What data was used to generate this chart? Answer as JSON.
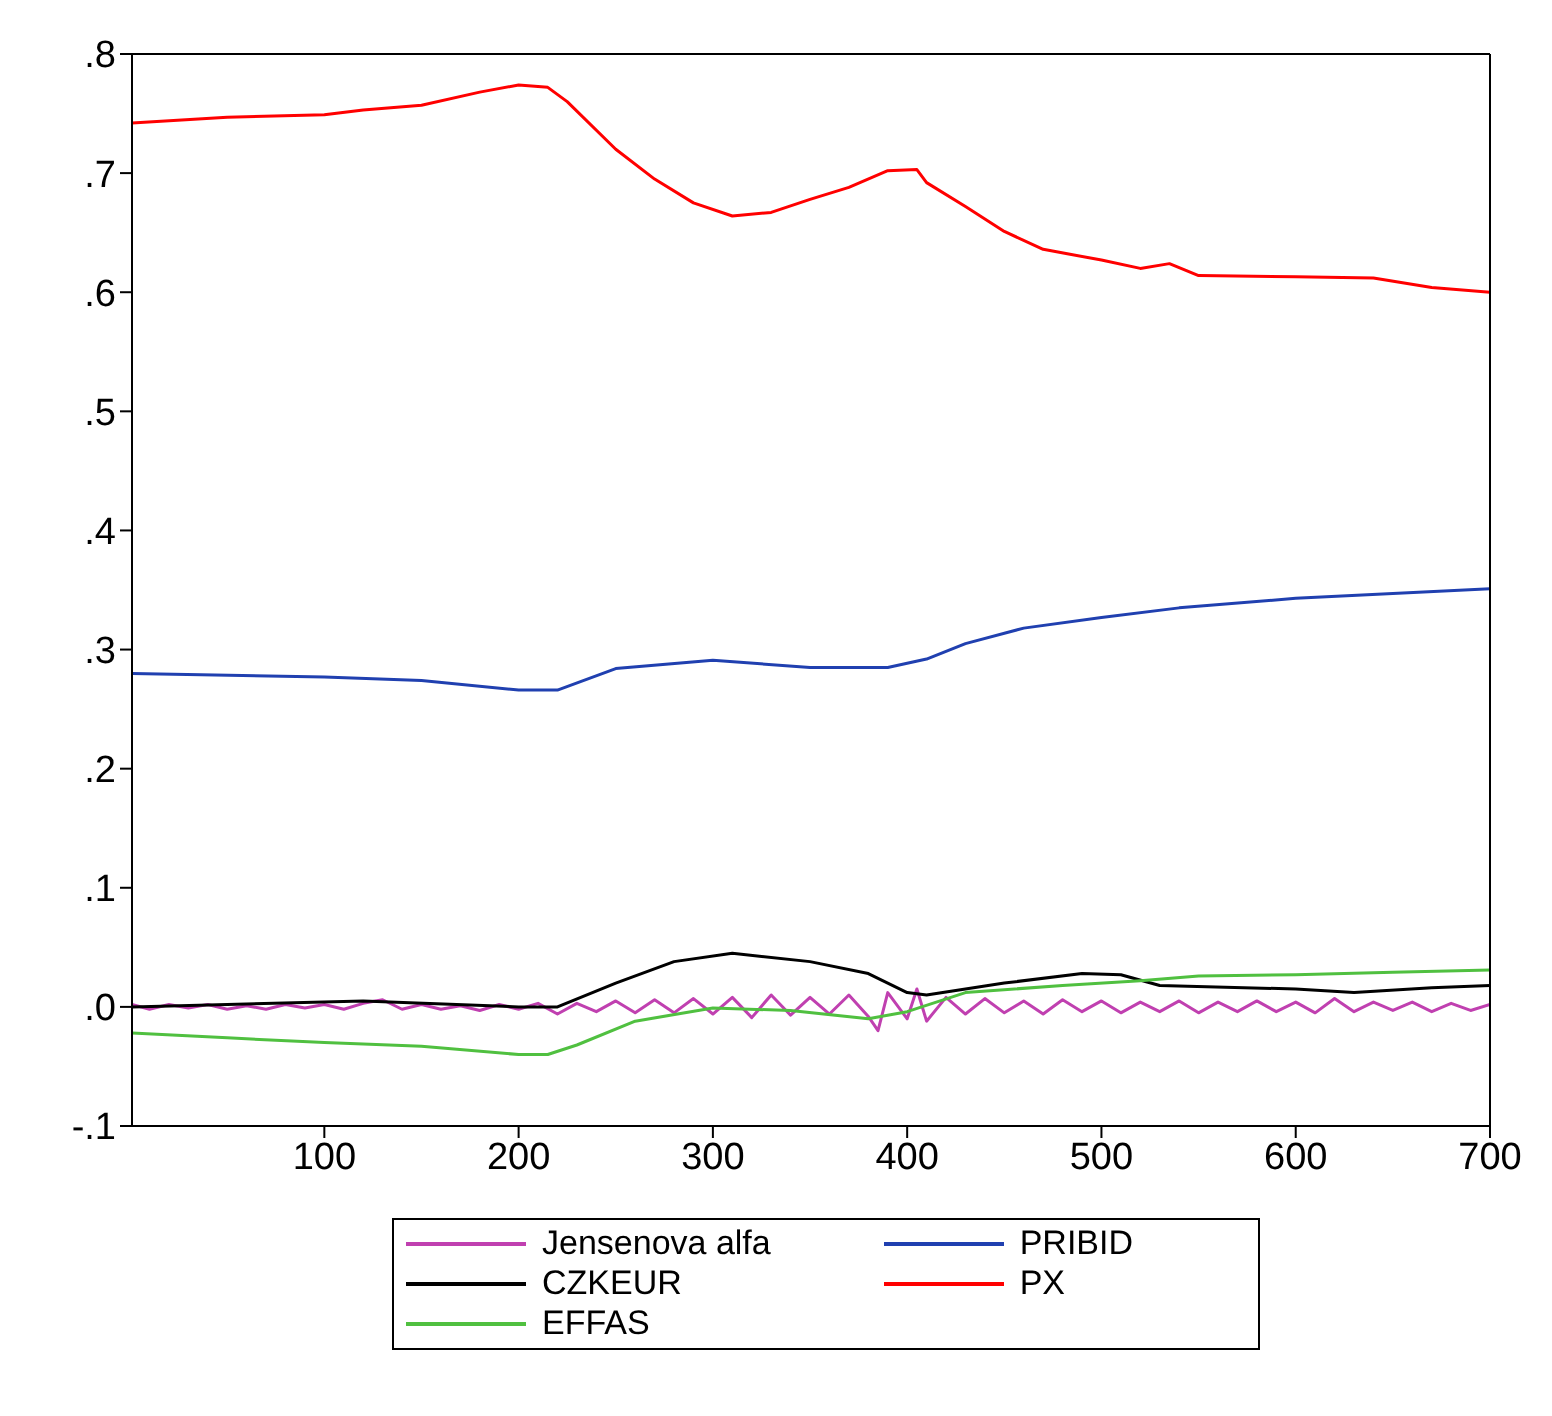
{
  "chart_data": {
    "type": "line",
    "xlim": [
      1,
      700
    ],
    "xticks": [
      100,
      200,
      300,
      400,
      500,
      600,
      700
    ],
    "ylim": [
      -0.1,
      0.8
    ],
    "yticks": [
      {
        "value": -0.1,
        "label": "-.1"
      },
      {
        "value": 0,
        "label": ".0"
      },
      {
        "value": 0.1,
        "label": ".1"
      },
      {
        "value": 0.2,
        "label": ".2"
      },
      {
        "value": 0.3,
        "label": ".3"
      },
      {
        "value": 0.4,
        "label": ".4"
      },
      {
        "value": 0.5,
        "label": ".5"
      },
      {
        "value": 0.6,
        "label": ".6"
      },
      {
        "value": 0.7,
        "label": ".7"
      },
      {
        "value": 0.8,
        "label": ".8"
      }
    ],
    "grid": false,
    "legend": "bottom",
    "marker": "none",
    "line_style": "solid",
    "series": [
      {
        "name": "Jensenova alfa",
        "color": "#c040b0",
        "x": [
          1,
          10,
          20,
          30,
          40,
          50,
          60,
          70,
          80,
          90,
          100,
          110,
          120,
          130,
          140,
          150,
          160,
          170,
          180,
          190,
          200,
          210,
          220,
          230,
          240,
          250,
          260,
          270,
          280,
          290,
          300,
          310,
          320,
          330,
          340,
          350,
          360,
          370,
          380,
          385,
          390,
          400,
          405,
          410,
          420,
          430,
          440,
          450,
          460,
          470,
          480,
          490,
          500,
          510,
          520,
          530,
          540,
          550,
          560,
          570,
          580,
          590,
          600,
          610,
          620,
          630,
          640,
          650,
          660,
          670,
          680,
          690,
          700
        ],
        "values": [
          0.002,
          -0.002,
          0.002,
          -0.001,
          0.002,
          -0.002,
          0.001,
          -0.002,
          0.002,
          -0.001,
          0.002,
          -0.002,
          0.003,
          0.006,
          -0.002,
          0.002,
          -0.002,
          0.001,
          -0.003,
          0.002,
          -0.002,
          0.003,
          -0.006,
          0.003,
          -0.004,
          0.005,
          -0.005,
          0.006,
          -0.005,
          0.007,
          -0.006,
          0.008,
          -0.009,
          0.01,
          -0.007,
          0.008,
          -0.006,
          0.01,
          -0.008,
          -0.02,
          0.012,
          -0.01,
          0.015,
          -0.012,
          0.008,
          -0.006,
          0.007,
          -0.005,
          0.005,
          -0.006,
          0.006,
          -0.004,
          0.005,
          -0.005,
          0.004,
          -0.004,
          0.005,
          -0.005,
          0.004,
          -0.004,
          0.005,
          -0.004,
          0.004,
          -0.005,
          0.007,
          -0.004,
          0.004,
          -0.003,
          0.004,
          -0.004,
          0.003,
          -0.003,
          0.002
        ]
      },
      {
        "name": "CZKEUR",
        "color": "#000000",
        "x": [
          1,
          50,
          120,
          200,
          220,
          250,
          280,
          310,
          350,
          380,
          400,
          410,
          450,
          490,
          510,
          530,
          600,
          630,
          670,
          700
        ],
        "values": [
          0,
          0.002,
          0.005,
          0,
          0,
          0.02,
          0.038,
          0.045,
          0.038,
          0.028,
          0.012,
          0.01,
          0.02,
          0.028,
          0.027,
          0.018,
          0.015,
          0.012,
          0.016,
          0.018
        ]
      },
      {
        "name": "EFFAS",
        "color": "#50c040",
        "x": [
          1,
          50,
          100,
          150,
          200,
          215,
          230,
          260,
          300,
          340,
          380,
          400,
          430,
          480,
          520,
          550,
          600,
          650,
          700
        ],
        "values": [
          -0.022,
          -0.026,
          -0.03,
          -0.033,
          -0.04,
          -0.04,
          -0.032,
          -0.012,
          -0.001,
          -0.003,
          -0.01,
          -0.004,
          0.012,
          0.018,
          0.022,
          0.026,
          0.027,
          0.029,
          0.031
        ]
      },
      {
        "name": "PRIBID",
        "color": "#2040b0",
        "x": [
          1,
          100,
          150,
          200,
          220,
          250,
          300,
          350,
          390,
          410,
          430,
          460,
          500,
          540,
          600,
          650,
          700
        ],
        "values": [
          0.28,
          0.277,
          0.274,
          0.266,
          0.266,
          0.284,
          0.291,
          0.285,
          0.285,
          0.292,
          0.305,
          0.318,
          0.327,
          0.335,
          0.343,
          0.347,
          0.351
        ]
      },
      {
        "name": "PX",
        "color": "#ff0000",
        "x": [
          1,
          50,
          100,
          120,
          150,
          180,
          200,
          215,
          225,
          250,
          270,
          290,
          310,
          330,
          350,
          370,
          390,
          405,
          410,
          430,
          450,
          470,
          500,
          520,
          535,
          550,
          600,
          640,
          670,
          700
        ],
        "values": [
          0.742,
          0.747,
          0.749,
          0.753,
          0.757,
          0.768,
          0.774,
          0.772,
          0.76,
          0.72,
          0.695,
          0.675,
          0.664,
          0.667,
          0.678,
          0.688,
          0.702,
          0.703,
          0.692,
          0.672,
          0.651,
          0.636,
          0.627,
          0.62,
          0.624,
          0.614,
          0.613,
          0.612,
          0.604,
          0.6
        ]
      }
    ]
  }
}
